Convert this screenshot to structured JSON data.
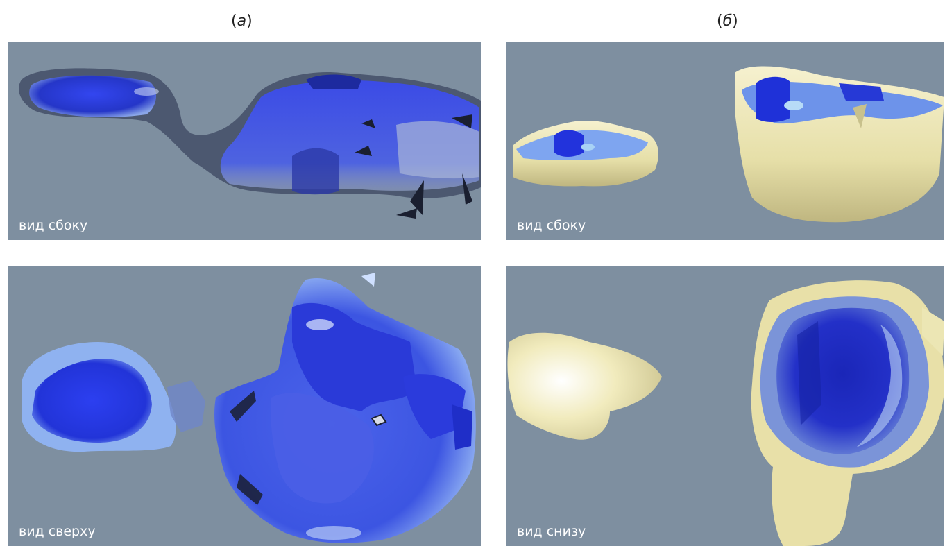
{
  "columns": {
    "a": {
      "open": "(",
      "letter": "а",
      "close": ")"
    },
    "b": {
      "open": "(",
      "letter": "б",
      "close": ")"
    }
  },
  "panels": {
    "a_top": {
      "caption": "вид сбоку"
    },
    "a_bottom": {
      "caption": "вид сверху"
    },
    "b_top": {
      "caption": "вид сбоку"
    },
    "b_bottom": {
      "caption": "вид снизу"
    }
  },
  "colors": {
    "background": "#7e8fa0",
    "cavity_blue": "#2a3de0",
    "cavity_light": "#8fb0f0",
    "shell_yellow": "#ece6b4"
  }
}
